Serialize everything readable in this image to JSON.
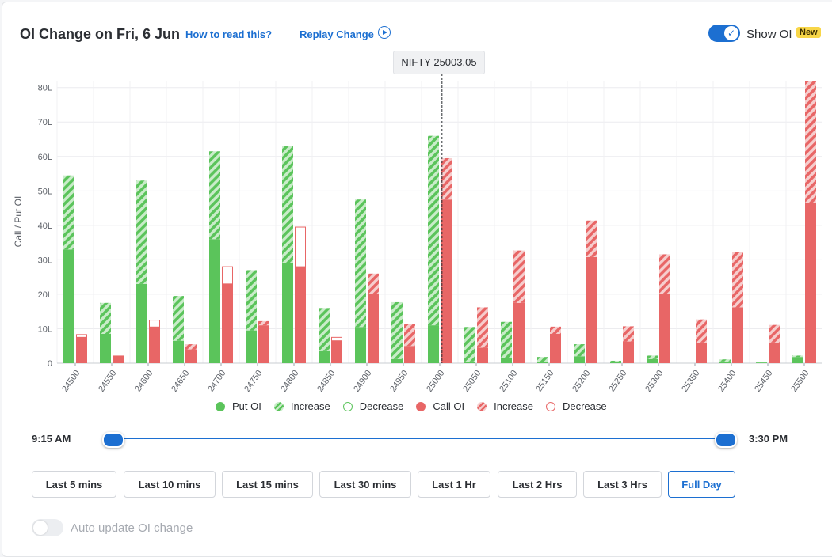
{
  "header": {
    "title": "OI Change on Fri, 6 Jun",
    "how_to_read": "How to read this?",
    "replay": "Replay Change",
    "show_oi_label": "Show OI",
    "show_oi_on": true,
    "new_badge": "New"
  },
  "spot_label": "NIFTY 25003.05",
  "chart_data": {
    "type": "bar",
    "ylabel": "Call / Put OI",
    "xlabel": "",
    "ylim": [
      0,
      82
    ],
    "y_unit": "L",
    "y_ticks": [
      "0",
      "10L",
      "20L",
      "30L",
      "40L",
      "50L",
      "60L",
      "70L",
      "80L"
    ],
    "spot_strike": 25003.05,
    "categories": [
      "24500",
      "24550",
      "24600",
      "24650",
      "24700",
      "24750",
      "24800",
      "24850",
      "24900",
      "24950",
      "25000",
      "25050",
      "25100",
      "25150",
      "25200",
      "25250",
      "25300",
      "25350",
      "25400",
      "25450",
      "25500"
    ],
    "series": [
      {
        "name": "Put OI",
        "values": [
          33,
          8.5,
          23,
          6.5,
          36,
          9.5,
          29,
          3.5,
          10.5,
          1.2,
          11,
          0.5,
          1.5,
          0.3,
          2,
          0.3,
          1.2,
          0,
          0.5,
          0.2,
          1.8
        ]
      },
      {
        "name": "Increase",
        "values": [
          21.5,
          9,
          30,
          13,
          25.5,
          17.5,
          34,
          12.5,
          37,
          16.5,
          55,
          10,
          10.5,
          1.5,
          3.5,
          0.4,
          1,
          0,
          0.6,
          0,
          0.4
        ]
      },
      {
        "name": "Decrease",
        "values": [
          0,
          0,
          0,
          0,
          0,
          0,
          0,
          0,
          0,
          0,
          0,
          0,
          0,
          0,
          0,
          0,
          0,
          0,
          0,
          0,
          0
        ]
      },
      {
        "name": "Call OI",
        "values": [
          7.5,
          2.2,
          10.5,
          4,
          23,
          11,
          28,
          6.5,
          20,
          5,
          47.5,
          4.5,
          17.5,
          8.5,
          30.8,
          6.3,
          20.2,
          6,
          16.2,
          6,
          46.5
        ]
      },
      {
        "name": "Increase",
        "values": [
          0,
          0,
          0,
          1.5,
          0,
          1.2,
          0,
          0,
          6,
          6.3,
          12,
          11.7,
          15.2,
          2.1,
          10.6,
          4.4,
          11.4,
          6.7,
          16,
          5.1,
          35.5
        ]
      },
      {
        "name": "Decrease",
        "values": [
          0.8,
          0,
          2,
          0,
          5,
          0,
          11.5,
          1,
          0,
          0,
          0,
          0,
          0,
          0,
          0,
          0,
          0,
          0,
          0,
          0,
          0
        ]
      }
    ],
    "legend": [
      "Put OI",
      "Increase",
      "Decrease",
      "Call OI",
      "Increase",
      "Decrease"
    ],
    "legend_position": "bottom",
    "grid": true,
    "colors": {
      "put": "#5bc45b",
      "put_stripe": "#c9ecc9",
      "call": "#e86666",
      "call_stripe": "#f6cdcd"
    }
  },
  "time_range": {
    "start": "9:15 AM",
    "end": "3:30 PM"
  },
  "buttons": {
    "last5": "Last 5 mins",
    "last10": "Last 10 mins",
    "last15": "Last 15 mins",
    "last30": "Last 30 mins",
    "last1h": "Last 1 Hr",
    "last2h": "Last 2 Hrs",
    "last3h": "Last 3 Hrs",
    "full": "Full Day",
    "active": "full"
  },
  "auto_update": {
    "label": "Auto update OI change",
    "on": false
  },
  "icons": {
    "replay": "play-circle-icon",
    "toggle_check": "check-icon"
  },
  "accent_color": "#1c6fd1"
}
